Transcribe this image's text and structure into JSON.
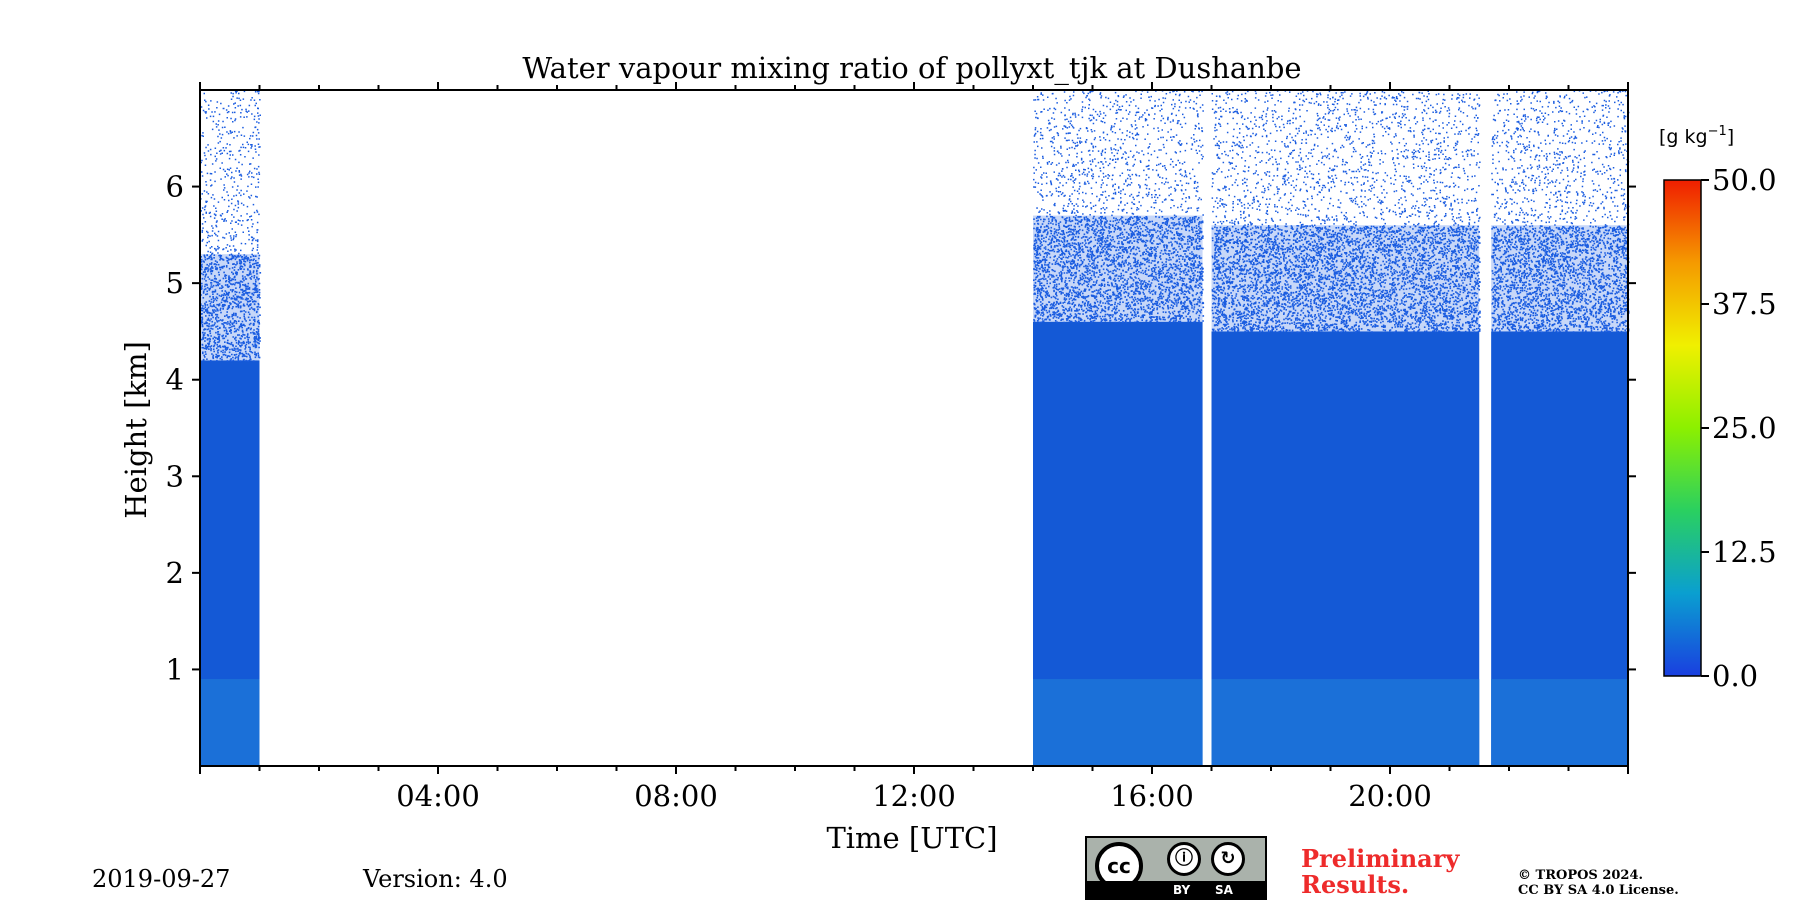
{
  "chart_data": {
    "type": "heatmap",
    "title": "Water vapour mixing ratio of pollyxt_tjk at Dushanbe",
    "xlabel": "Time [UTC]",
    "ylabel": "Height [km]",
    "xlim_hours": [
      0,
      24
    ],
    "ylim_km": [
      0,
      7
    ],
    "x_ticks": [
      {
        "hour": 4,
        "label": "04:00"
      },
      {
        "hour": 8,
        "label": "08:00"
      },
      {
        "hour": 12,
        "label": "12:00"
      },
      {
        "hour": 16,
        "label": "16:00"
      },
      {
        "hour": 20,
        "label": "20:00"
      }
    ],
    "y_ticks": [
      {
        "km": 1,
        "label": "1"
      },
      {
        "km": 2,
        "label": "2"
      },
      {
        "km": 3,
        "label": "3"
      },
      {
        "km": 4,
        "label": "4"
      },
      {
        "km": 5,
        "label": "5"
      },
      {
        "km": 6,
        "label": "6"
      }
    ],
    "colorbar": {
      "unit_label": "[g kg",
      "unit_sup": "−1",
      "unit_close": "]",
      "min": 0,
      "max": 50,
      "ticks": [
        {
          "value": 0,
          "label": "0.0"
        },
        {
          "value": 12.5,
          "label": "12.5"
        },
        {
          "value": 25,
          "label": "25.0"
        },
        {
          "value": 37.5,
          "label": "37.5"
        },
        {
          "value": 50,
          "label": "50.0"
        }
      ],
      "colors": [
        "#1a3fe0",
        "#0a9fd0",
        "#2ad060",
        "#8cf000",
        "#f0f000",
        "#f59a00",
        "#f01e00"
      ]
    },
    "measurement_segments": [
      {
        "start_hour": 0.0,
        "end_hour": 1.0,
        "dense_top_km": 4.2,
        "sparse_top_km": 7.0
      },
      {
        "start_hour": 14.0,
        "end_hour": 16.85,
        "dense_top_km": 4.6,
        "sparse_top_km": 7.0
      },
      {
        "start_hour": 17.0,
        "end_hour": 21.5,
        "dense_top_km": 4.5,
        "sparse_top_km": 7.0
      },
      {
        "start_hour": 21.7,
        "end_hour": 24.0,
        "dense_top_km": 4.5,
        "sparse_top_km": 7.0
      }
    ]
  },
  "footer": {
    "date": "2019-09-27",
    "version": "Version: 4.0",
    "preliminary_line1": "Preliminary",
    "preliminary_line2": "Results.",
    "copyright_line1": "© TROPOS 2024.",
    "copyright_line2": "CC BY SA 4.0 License.",
    "license_cc": "cc",
    "license_by": "BY",
    "license_sa": "SA"
  }
}
